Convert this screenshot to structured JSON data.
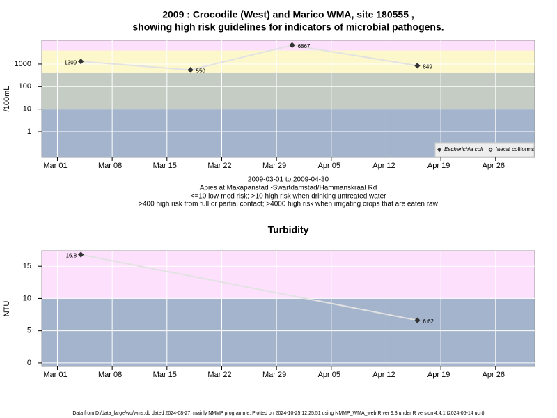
{
  "chart_data": [
    {
      "type": "line",
      "title": [
        "2009 : Crocodile (West) and Marico WMA, site 180555 ,",
        "showing high risk guidelines for indicators of microbial pathogens."
      ],
      "subtitle": [
        "2009-03-01 to 2009-04-30",
        "Apies at Makapanstad -Swartdamstad/Hammanskraal Rd",
        "<=10 low-med risk; >10 high risk when drinking untreated water",
        ">400 high risk from full or partial contact; >4000 high risk when irrigating crops that are eaten raw"
      ],
      "y_label": "/100mL",
      "log_scale": true,
      "x": [
        "2009-03-04",
        "2009-03-18",
        "2009-03-31",
        "2009-04-16"
      ],
      "series": [
        {
          "name": "Escherichia coli",
          "color": "#333333",
          "marker": "filled",
          "line_color": "#e2e2e2",
          "values": [
            1309,
            550,
            6867,
            849
          ]
        },
        {
          "name": "faecal coliforms",
          "color": "#333333",
          "marker": "open",
          "line_color": "#e2e2e2",
          "values": [
            null,
            null,
            null,
            null
          ]
        }
      ],
      "xlim": [
        "2009-02-27",
        "2009-05-01"
      ],
      "xticks": [
        {
          "value": "2009-03-01",
          "label": "Mar 01"
        },
        {
          "value": "2009-03-08",
          "label": "Mar 08"
        },
        {
          "value": "2009-03-15",
          "label": "Mar 15"
        },
        {
          "value": "2009-03-22",
          "label": "Mar 22"
        },
        {
          "value": "2009-03-29",
          "label": "Mar 29"
        },
        {
          "value": "2009-04-05",
          "label": "Apr 05"
        },
        {
          "value": "2009-04-12",
          "label": "Apr 12"
        },
        {
          "value": "2009-04-19",
          "label": "Apr 19"
        },
        {
          "value": "2009-04-26",
          "label": "Apr 26"
        }
      ],
      "ylim": [
        0.072,
        11200
      ],
      "yticks": [
        1,
        10,
        100,
        1000
      ],
      "bands": [
        {
          "max": 10,
          "color": "#a4b4cc"
        },
        {
          "min": 10,
          "max": 400,
          "color": "#c4ccc4"
        },
        {
          "min": 400,
          "max": 4000,
          "color": "#fcf8cc"
        },
        {
          "min": 4000,
          "color": "#fce0fc"
        }
      ],
      "grid": true,
      "legend": "bottom-right"
    },
    {
      "type": "line",
      "title": [
        "Turbidity"
      ],
      "y_label": "NTU",
      "log_scale": false,
      "x": [
        "2009-03-04",
        "2009-04-16"
      ],
      "series": [
        {
          "color": "#333333",
          "marker": "filled",
          "line_color": "#e2e2e2",
          "values": [
            16.8,
            6.62
          ]
        }
      ],
      "xlim": [
        "2009-02-27",
        "2009-05-01"
      ],
      "xticks": [
        {
          "value": "2009-03-01",
          "label": "Mar 01"
        },
        {
          "value": "2009-03-08",
          "label": "Mar 08"
        },
        {
          "value": "2009-03-15",
          "label": "Mar 15"
        },
        {
          "value": "2009-03-22",
          "label": "Mar 22"
        },
        {
          "value": "2009-03-29",
          "label": "Mar 29"
        },
        {
          "value": "2009-04-05",
          "label": "Apr 05"
        },
        {
          "value": "2009-04-12",
          "label": "Apr 12"
        },
        {
          "value": "2009-04-19",
          "label": "Apr 19"
        },
        {
          "value": "2009-04-26",
          "label": "Apr 26"
        }
      ],
      "ylim": [
        -0.55,
        17.4
      ],
      "yticks": [
        0,
        5,
        10,
        15
      ],
      "bands": [
        {
          "max": 10,
          "color": "#a4b4cc"
        },
        {
          "min": 10,
          "color": "#fce0fc"
        }
      ],
      "grid": true
    }
  ],
  "footer": "Data from D:/data_large/wq/wms.db dated 2024-08-27, mainly NMMP programme. Plotted on 2024-10-25 12:25:51 using NMMP_WMA_web.R ver 9.3 under R version 4.4.1 (2024-06-14 ucrt)"
}
